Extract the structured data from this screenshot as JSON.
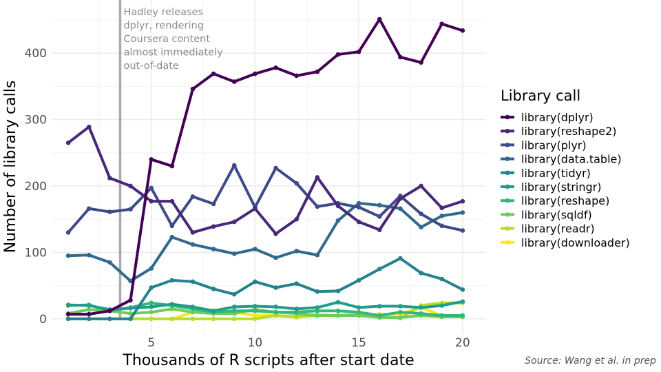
{
  "chart_data": {
    "type": "line",
    "xlabel": "Thousands of R scripts after start date",
    "ylabel": "Number of library calls",
    "x": [
      1,
      2,
      3,
      4,
      5,
      6,
      7,
      8,
      9,
      10,
      11,
      12,
      13,
      14,
      15,
      16,
      17,
      18,
      19,
      20
    ],
    "xlim": [
      0.2,
      21.1
    ],
    "ylim": [
      -23,
      480
    ],
    "xticks": [
      5,
      10,
      15,
      20
    ],
    "yticks": [
      0,
      100,
      200,
      300,
      400
    ],
    "grid": true,
    "legend_title": "Library call",
    "legend_position": "right",
    "series": [
      {
        "name": "library(dplyr)",
        "color": "#440154",
        "values": [
          7,
          7,
          12,
          28,
          240,
          230,
          346,
          369,
          357,
          369,
          378,
          366,
          372,
          398,
          402,
          451,
          394,
          386,
          444,
          434
        ]
      },
      {
        "name": "library(reshape2)",
        "color": "#482878",
        "values": [
          265,
          289,
          212,
          200,
          177,
          177,
          130,
          139,
          146,
          166,
          128,
          150,
          213,
          170,
          146,
          134,
          181,
          200,
          167,
          177
        ]
      },
      {
        "name": "library(plyr)",
        "color": "#3E4A89",
        "values": [
          130,
          166,
          161,
          165,
          197,
          140,
          184,
          173,
          231,
          168,
          227,
          204,
          169,
          174,
          168,
          154,
          185,
          158,
          140,
          133
        ]
      },
      {
        "name": "library(data.table)",
        "color": "#31688E",
        "values": [
          95,
          96,
          85,
          57,
          76,
          123,
          112,
          105,
          98,
          105,
          92,
          102,
          96,
          148,
          174,
          171,
          166,
          138,
          155,
          160
        ]
      },
      {
        "name": "library(tidyr)",
        "color": "#26828E",
        "values": [
          0,
          0,
          0,
          0,
          47,
          58,
          56,
          45,
          37,
          56,
          47,
          53,
          41,
          42,
          58,
          75,
          91,
          69,
          60,
          44
        ]
      },
      {
        "name": "library(stringr)",
        "color": "#1F9E89",
        "values": [
          21,
          20,
          14,
          16,
          18,
          22,
          18,
          12,
          18,
          19,
          18,
          15,
          17,
          25,
          17,
          19,
          19,
          17,
          20,
          26
        ]
      },
      {
        "name": "library(reshape)",
        "color": "#35B779",
        "values": [
          20,
          21,
          12,
          17,
          24,
          20,
          15,
          10,
          12,
          12,
          10,
          10,
          12,
          12,
          10,
          5,
          10,
          8,
          5,
          5
        ]
      },
      {
        "name": "library(sqldf)",
        "color": "#6DCD59",
        "values": [
          8,
          14,
          12,
          8,
          10,
          15,
          10,
          8,
          8,
          14,
          10,
          8,
          5,
          5,
          5,
          2,
          2,
          5,
          3,
          3
        ]
      },
      {
        "name": "library(readr)",
        "color": "#B4DE2C",
        "values": [
          0,
          0,
          0,
          0,
          0,
          0,
          0,
          0,
          0,
          0,
          5,
          3,
          5,
          5,
          7,
          3,
          1,
          20,
          24,
          24
        ]
      },
      {
        "name": "library(downloader)",
        "color": "#FDE725",
        "values": [
          0,
          0,
          0,
          0,
          0,
          0,
          10,
          10,
          10,
          5,
          5,
          2,
          7,
          5,
          5,
          7,
          7,
          17,
          5,
          5
        ]
      }
    ],
    "annotation": {
      "x": 3.5,
      "lines": [
        "Hadley releases",
        "dplyr, rendering",
        "Coursera content",
        "almost immediately",
        "out-of-date"
      ]
    },
    "caption": "Source: Wang et al. in prep"
  }
}
